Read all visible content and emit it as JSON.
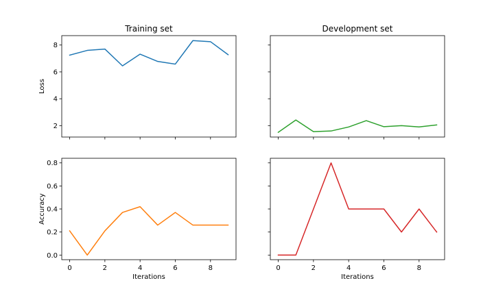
{
  "chart_data": [
    {
      "type": "line",
      "title": "Training set",
      "xlabel": "",
      "ylabel": "Loss",
      "xlim": [
        -0.45,
        9.45
      ],
      "ylim": [
        1.15,
        8.7
      ],
      "xticks": [
        0,
        2,
        4,
        6,
        8
      ],
      "yticks": [
        2,
        4,
        6,
        8
      ],
      "xtick_labels_visible": false,
      "ytick_labels_visible": true,
      "grid": false,
      "series": [
        {
          "color": "#1f77b4",
          "x": [
            0,
            1,
            2,
            3,
            4,
            5,
            6,
            7,
            8,
            9
          ],
          "y": [
            7.25,
            7.6,
            7.7,
            6.45,
            7.32,
            6.78,
            6.58,
            8.33,
            8.25,
            7.28
          ]
        }
      ]
    },
    {
      "type": "line",
      "title": "Development set",
      "xlabel": "",
      "ylabel": "",
      "xlim": [
        -0.45,
        9.45
      ],
      "ylim": [
        1.15,
        8.7
      ],
      "xticks": [
        0,
        2,
        4,
        6,
        8
      ],
      "yticks": [
        2,
        4,
        6,
        8
      ],
      "xtick_labels_visible": false,
      "ytick_labels_visible": false,
      "grid": false,
      "series": [
        {
          "color": "#2ca02c",
          "x": [
            0,
            1,
            2,
            3,
            4,
            5,
            6,
            7,
            8,
            9
          ],
          "y": [
            1.5,
            2.42,
            1.55,
            1.6,
            1.9,
            2.37,
            1.92,
            2.0,
            1.9,
            2.05
          ]
        }
      ]
    },
    {
      "type": "line",
      "title": "",
      "xlabel": "Iterations",
      "ylabel": "Accuracy",
      "xlim": [
        -0.45,
        9.45
      ],
      "ylim": [
        -0.04,
        0.84
      ],
      "xticks": [
        0,
        2,
        4,
        6,
        8
      ],
      "yticks": [
        0.0,
        0.2,
        0.4,
        0.6,
        0.8
      ],
      "ytick_labels": [
        "0.0",
        "0.2",
        "0.4",
        "0.6",
        "0.8"
      ],
      "xtick_labels_visible": true,
      "ytick_labels_visible": true,
      "grid": false,
      "series": [
        {
          "color": "#ff7f0e",
          "x": [
            0,
            1,
            2,
            3,
            4,
            5,
            6,
            7,
            8,
            9
          ],
          "y": [
            0.21,
            0.0,
            0.21,
            0.37,
            0.42,
            0.26,
            0.37,
            0.26,
            0.26,
            0.26
          ]
        }
      ]
    },
    {
      "type": "line",
      "title": "",
      "xlabel": "Iterations",
      "ylabel": "",
      "xlim": [
        -0.45,
        9.45
      ],
      "ylim": [
        -0.04,
        0.84
      ],
      "xticks": [
        0,
        2,
        4,
        6,
        8
      ],
      "yticks": [
        0.0,
        0.2,
        0.4,
        0.6,
        0.8
      ],
      "xtick_labels_visible": true,
      "ytick_labels_visible": false,
      "grid": false,
      "series": [
        {
          "color": "#d62728",
          "x": [
            0,
            1,
            2,
            3,
            4,
            5,
            6,
            7,
            8,
            9
          ],
          "y": [
            0.0,
            0.0,
            0.4,
            0.8,
            0.4,
            0.4,
            0.4,
            0.2,
            0.4,
            0.2
          ]
        }
      ]
    }
  ]
}
